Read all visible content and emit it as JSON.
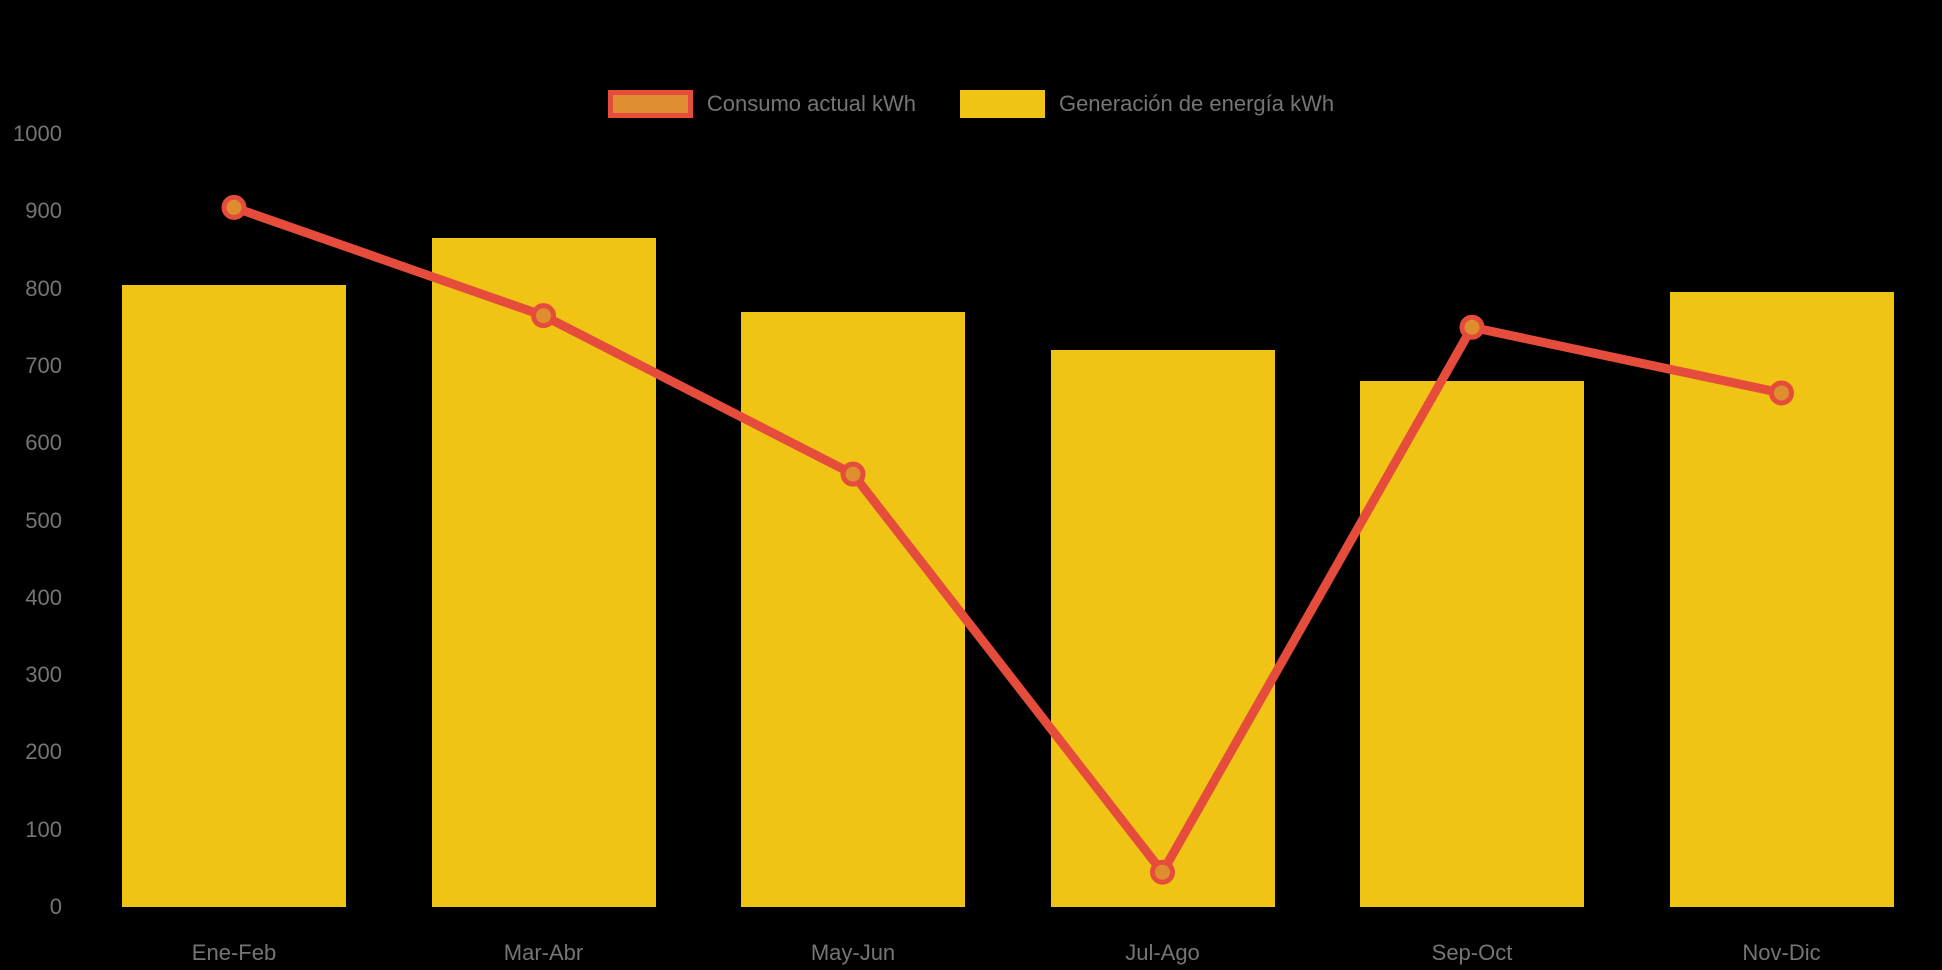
{
  "legend": {
    "items": [
      {
        "id": "consumo",
        "label": "Consumo actual kWh",
        "series_type": "line"
      },
      {
        "id": "generacion",
        "label": "Generación de energía kWh",
        "series_type": "bar"
      }
    ]
  },
  "colors": {
    "background": "#000000",
    "bar": "#F0C414",
    "line": "#E54C3C",
    "point_fill": "#DF8E2F",
    "text": "#757575"
  },
  "chart_data": {
    "type": "bar+line",
    "title": "",
    "xlabel": "",
    "ylabel": "",
    "categories": [
      "Ene-Feb",
      "Mar-Abr",
      "May-Jun",
      "Jul-Ago",
      "Sep-Oct",
      "Nov-Dic"
    ],
    "series": [
      {
        "name": "Consumo actual kWh",
        "type": "line",
        "values": [
          905,
          765,
          560,
          45,
          750,
          665
        ]
      },
      {
        "name": "Generación de energía kWh",
        "type": "bar",
        "values": [
          805,
          865,
          770,
          720,
          680,
          795
        ]
      }
    ],
    "ylim": [
      0,
      1000
    ],
    "ytick_step": 100,
    "ytick_labels": [
      "0",
      "100",
      "200",
      "300",
      "400",
      "500",
      "600",
      "700",
      "800",
      "900",
      "1000"
    ],
    "grid": false,
    "legend_position": "top"
  }
}
